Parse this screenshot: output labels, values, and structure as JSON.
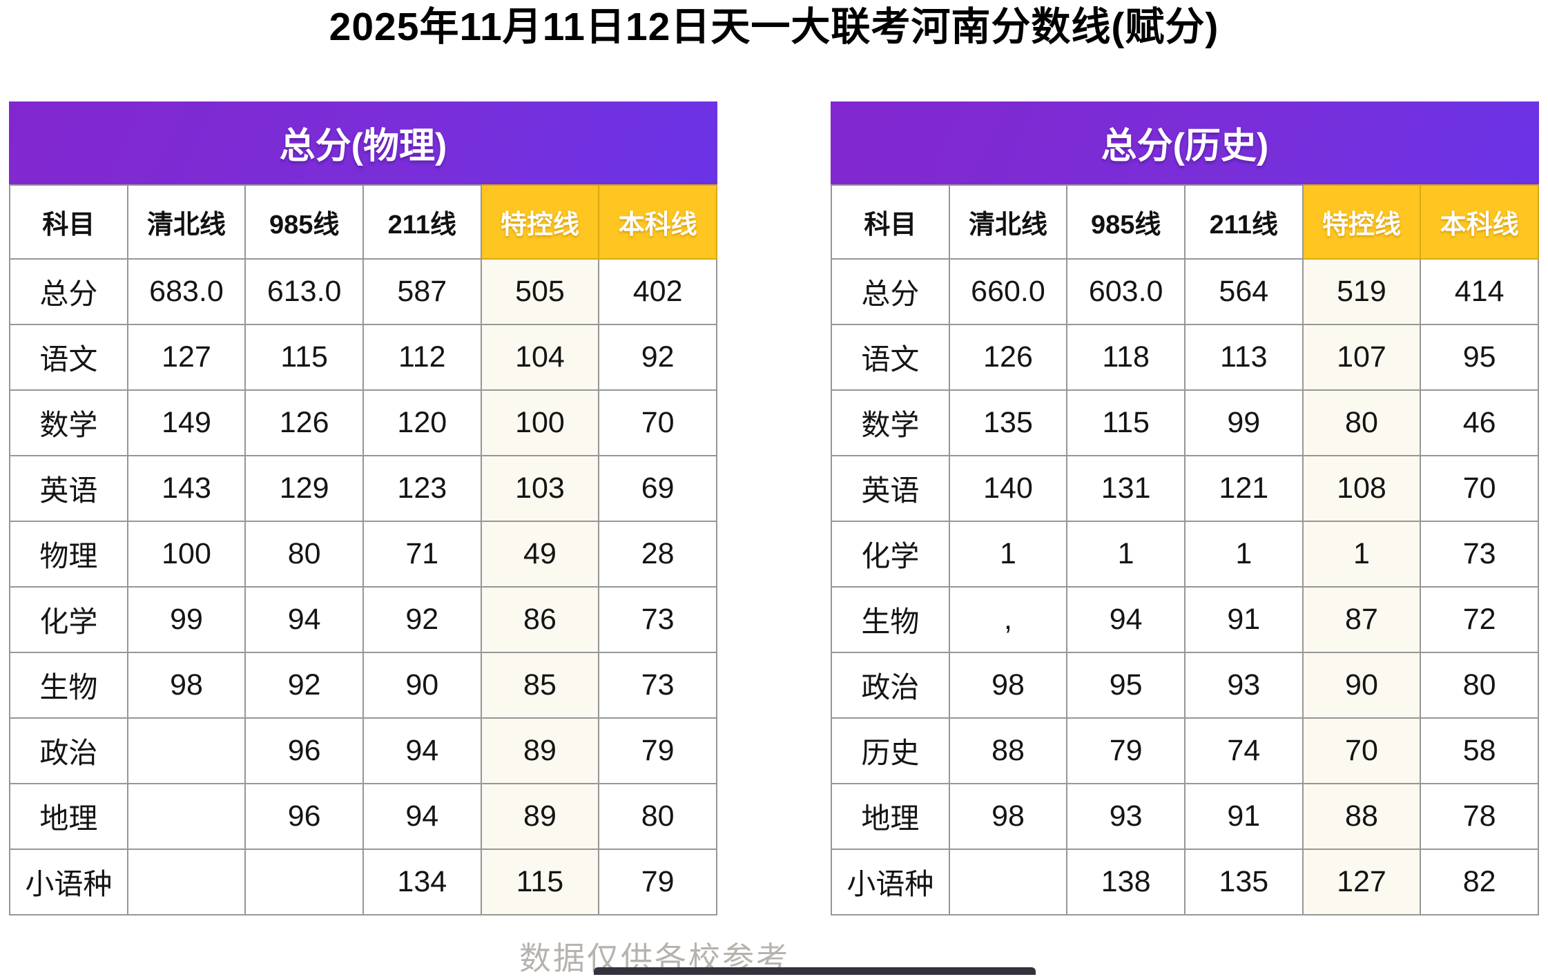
{
  "title": "2025年11月11日12日天一大联考河南分数线(赋分)",
  "footer": "数据仅供各校参考",
  "colors": {
    "header_purple": "#7a2ed8",
    "header_yellow": "#ffc520",
    "grid_gray": "#969696",
    "footer_gray": "#b7b2ae"
  },
  "chart_data": [
    {
      "type": "table",
      "title": "总分(物理)",
      "columns": [
        "科目",
        "清北线",
        "985线",
        "211线",
        "特控线",
        "本科线"
      ],
      "rows": [
        [
          "总分",
          "683.0",
          "613.0",
          "587",
          "505",
          "402"
        ],
        [
          "语文",
          "127",
          "115",
          "112",
          "104",
          "92"
        ],
        [
          "数学",
          "149",
          "126",
          "120",
          "100",
          "70"
        ],
        [
          "英语",
          "143",
          "129",
          "123",
          "103",
          "69"
        ],
        [
          "物理",
          "100",
          "80",
          "71",
          "49",
          "28"
        ],
        [
          "化学",
          "99",
          "94",
          "92",
          "86",
          "73"
        ],
        [
          "生物",
          "98",
          "92",
          "90",
          "85",
          "73"
        ],
        [
          "政治",
          "",
          "96",
          "94",
          "89",
          "79"
        ],
        [
          "地理",
          "",
          "96",
          "94",
          "89",
          "80"
        ],
        [
          "小语种",
          "",
          "",
          "134",
          "115",
          "79"
        ]
      ]
    },
    {
      "type": "table",
      "title": "总分(历史)",
      "columns": [
        "科目",
        "清北线",
        "985线",
        "211线",
        "特控线",
        "本科线"
      ],
      "rows": [
        [
          "总分",
          "660.0",
          "603.0",
          "564",
          "519",
          "414"
        ],
        [
          "语文",
          "126",
          "118",
          "113",
          "107",
          "95"
        ],
        [
          "数学",
          "135",
          "115",
          "99",
          "80",
          "46"
        ],
        [
          "英语",
          "140",
          "131",
          "121",
          "108",
          "70"
        ],
        [
          "化学",
          "1",
          "1",
          "1",
          "1",
          "73"
        ],
        [
          "生物",
          ",",
          "94",
          "91",
          "87",
          "72"
        ],
        [
          "政治",
          "98",
          "95",
          "93",
          "90",
          "80"
        ],
        [
          "历史",
          "88",
          "79",
          "74",
          "70",
          "58"
        ],
        [
          "地理",
          "98",
          "93",
          "91",
          "88",
          "78"
        ],
        [
          "小语种",
          "",
          "138",
          "135",
          "127",
          "82"
        ]
      ]
    }
  ]
}
